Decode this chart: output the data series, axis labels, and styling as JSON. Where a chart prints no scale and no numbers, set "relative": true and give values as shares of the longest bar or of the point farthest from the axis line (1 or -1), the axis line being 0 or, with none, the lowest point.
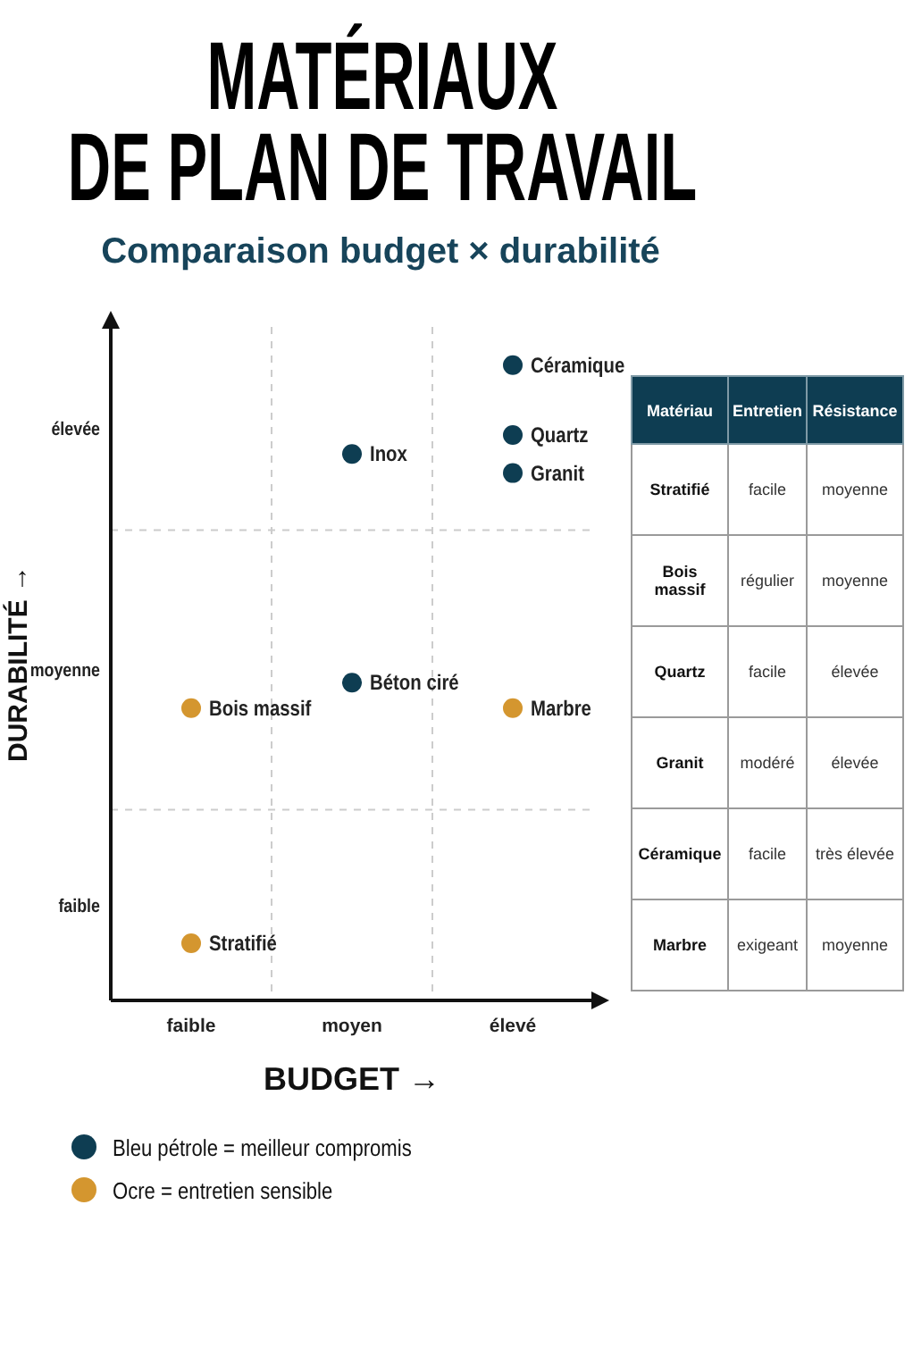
{
  "chart_data": [
    {
      "type": "scatter",
      "title": "MATÉRIAUX\nDE PLAN DE TRAVAIL",
      "subtitle": "Comparaison budget × durabilité",
      "xlabel": "BUDGET →",
      "ylabel": "DURABILITÉ →",
      "categories": [
        "faible",
        "moyen",
        "élevé"
      ],
      "relative": true,
      "series": [
        {
          "name": "Bleu pétrole = meilleur compromis",
          "color": "#0e3d52",
          "x": [
            "élevé",
            "élevé",
            "élevé",
            "moyen",
            "moyen"
          ],
          "values": [
            1,
            0.89,
            0.83,
            0.86,
            0.5
          ]
        },
        {
          "name": "Ocre = entretien sensible",
          "color": "#d4962f",
          "x": [
            "faible",
            "élevé",
            "faible"
          ],
          "values": [
            0.46,
            0.46,
            0.09
          ]
        }
      ],
      "annotations": [
        "élevée",
        "moyenne",
        "faible",
        {
          "text": "Céramique",
          "x": "élevé",
          "y": 1
        },
        {
          "text": "Quartz",
          "x": "élevé",
          "y": 0.89
        },
        {
          "text": "Granit",
          "x": "élevé",
          "y": 0.83
        },
        {
          "text": "Inox",
          "x": "moyen",
          "y": 0.86
        },
        {
          "text": "Béton ciré",
          "x": "moyen",
          "y": 0.5
        },
        {
          "text": "Bois massif",
          "x": "faible",
          "y": 0.46
        },
        {
          "text": "Marbre",
          "x": "élevé",
          "y": 0.46
        },
        {
          "text": "Stratifié",
          "x": "faible",
          "y": 0.09
        }
      ],
      "ref_lines": [
        {
          "axis": "y",
          "value": 0.3,
          "color": "#cccccc",
          "line_style": "dashed"
        },
        {
          "axis": "y",
          "value": 0.74,
          "color": "#cccccc",
          "line_style": "dashed"
        }
      ],
      "grid": "x",
      "marker": "circle",
      "legend": "bottom"
    },
    {
      "type": "other",
      "ylabel": "Matériau",
      "categories": [
        "Entretien",
        "Résistance"
      ],
      "y_categories": [
        "Stratifié",
        "Bois massif",
        "Quartz",
        "Granit",
        "Céramique",
        "Marbre"
      ],
      "cell_labels": [
        [
          "facile",
          "moyenne"
        ],
        [
          "régulier",
          "moyenne"
        ],
        [
          "facile",
          "élevée"
        ],
        [
          "modéré",
          "élevée"
        ],
        [
          "facile",
          "très élevée"
        ],
        [
          "exigeant",
          "moyenne"
        ]
      ]
    }
  ]
}
